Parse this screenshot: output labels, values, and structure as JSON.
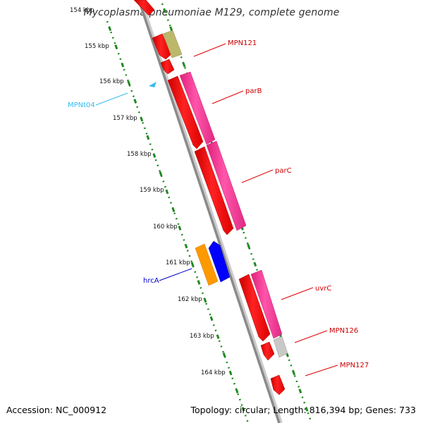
{
  "title": "Mycoplasma pneumoniae M129, complete genome",
  "footer": {
    "accession": "Accession: NC_000912",
    "topology": "Topology: circular; Length: 816,394 bp; Genes: 733"
  },
  "ticks": [
    "154 kbp",
    "155 kbp",
    "156 kbp",
    "157 kbp",
    "158 kbp",
    "159 kbp",
    "160 kbp",
    "161 kbp",
    "162 kbp",
    "163 kbp",
    "164 kbp"
  ],
  "labels": {
    "mpn121": "MPN121",
    "parb": "parB",
    "parc": "parC",
    "uvrc": "uvrC",
    "mpn126": "MPN126",
    "mpn127": "MPN127",
    "mpnt04": "MPNt04",
    "hrca": "hrcA"
  },
  "colors": {
    "gene_red": "#ff0000",
    "gene_magenta": "#ff3399",
    "gene_olive": "#bdb76b",
    "gene_orange": "#ff9900",
    "gene_blue": "#0000ff",
    "gene_gray": "#c8c8c8",
    "trna_cyan": "#33bbee",
    "tick_green": "#228822",
    "backbone": "#888888"
  }
}
